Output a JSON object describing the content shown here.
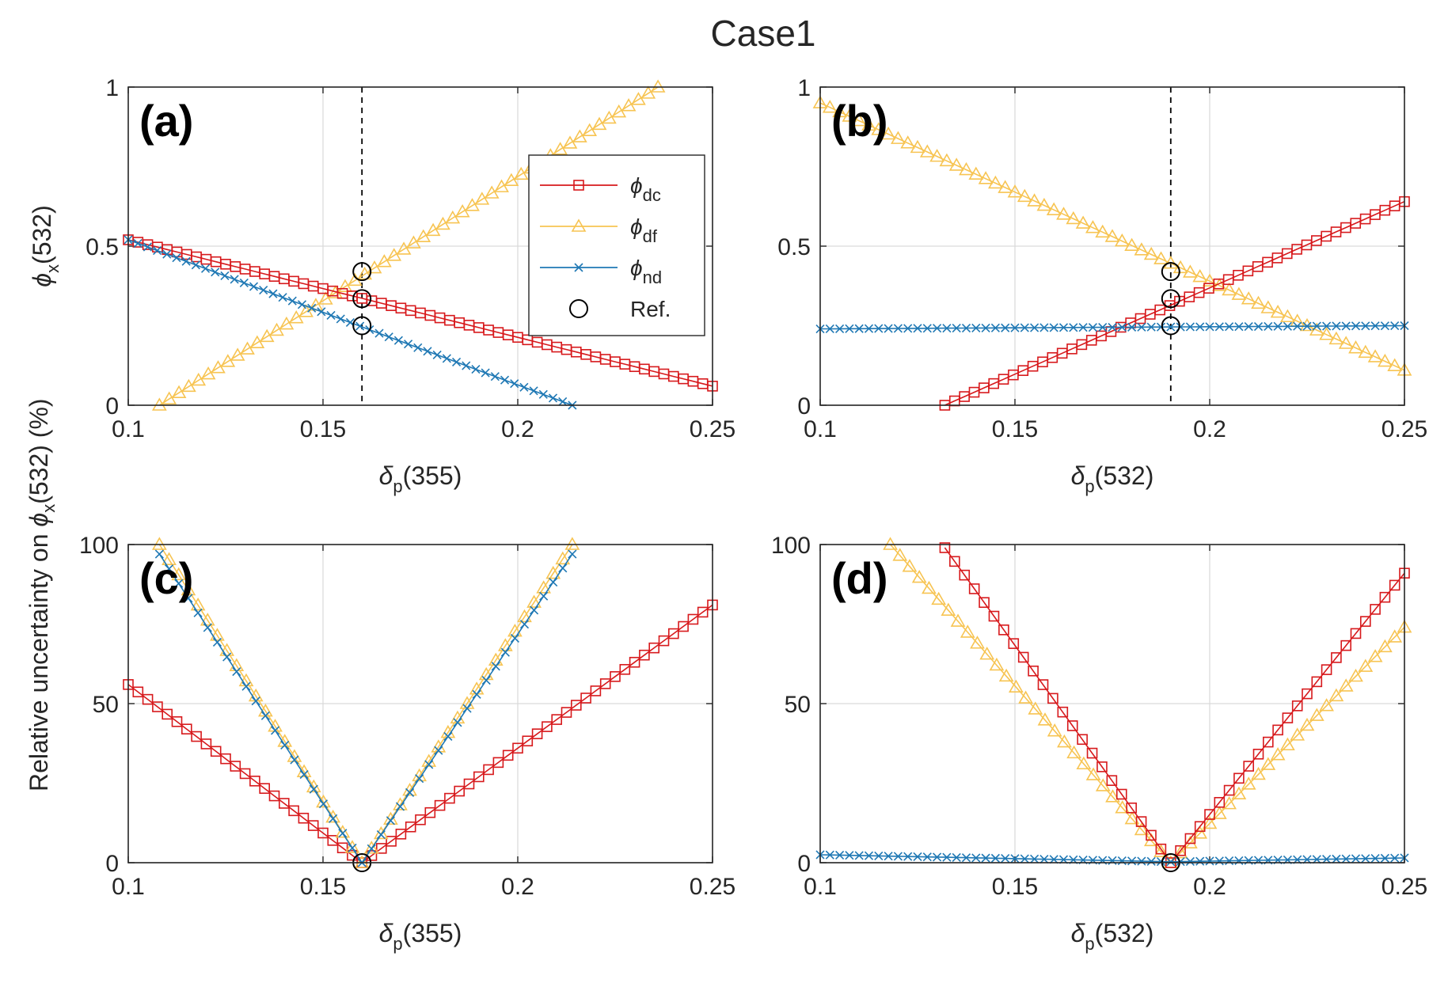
{
  "figure": {
    "title": "Case1",
    "shared_ylabel": {
      "prefix": "Relative uncertainty on ",
      "symbol": "ϕ",
      "subscript": "x",
      "suffix": "(532) (%)"
    },
    "colors": {
      "dc": "#d7191c",
      "df": "#f7c452",
      "nd": "#1f78b4",
      "ref": "#000000",
      "grid": "#d9d9d9",
      "axis": "#262626"
    }
  },
  "legend": {
    "entries": [
      {
        "key": "dc",
        "symbol": "ϕ",
        "sub": "dc",
        "marker": "square"
      },
      {
        "key": "df",
        "symbol": "ϕ",
        "sub": "df",
        "marker": "triangle"
      },
      {
        "key": "nd",
        "symbol": "ϕ",
        "sub": "nd",
        "marker": "x"
      },
      {
        "key": "ref",
        "label": "Ref.",
        "marker": "circle"
      }
    ]
  },
  "chart_data": [
    {
      "id": "a",
      "type": "line",
      "panel_label": "(a)",
      "xlabel": {
        "symbol": "δ",
        "sub": "p",
        "suffix": "(355)"
      },
      "ylabel": {
        "symbol": "ϕ",
        "sub": "x",
        "suffix": "(532)"
      },
      "xlim": [
        0.1,
        0.25
      ],
      "ylim": [
        0,
        1
      ],
      "xticks": [
        "0.1",
        "0.15",
        "0.2",
        "0.25"
      ],
      "yticks": [
        "0",
        "0.5",
        "1"
      ],
      "grid": true,
      "legend": "top-right",
      "ref_line_x": 0.16,
      "series": [
        {
          "key": "dc",
          "x_start": 0.1,
          "x_end": 0.25,
          "y_start": 0.52,
          "y_end": 0.06
        },
        {
          "key": "df",
          "x_start": 0.108,
          "x_end": 0.236,
          "y_start": 0.0,
          "y_end": 1.0
        },
        {
          "key": "nd",
          "x_start": 0.1,
          "x_end": 0.214,
          "y_start": 0.52,
          "y_end": 0.0
        }
      ],
      "ref_points": [
        {
          "x": 0.16,
          "y": 0.42
        },
        {
          "x": 0.16,
          "y": 0.335
        },
        {
          "x": 0.16,
          "y": 0.25
        }
      ]
    },
    {
      "id": "b",
      "type": "line",
      "panel_label": "(b)",
      "xlabel": {
        "symbol": "δ",
        "sub": "p",
        "suffix": "(532)"
      },
      "xlim": [
        0.1,
        0.25
      ],
      "ylim": [
        0,
        1
      ],
      "xticks": [
        "0.1",
        "0.15",
        "0.2",
        "0.25"
      ],
      "yticks": [
        "0",
        "0.5",
        "1"
      ],
      "grid": true,
      "ref_line_x": 0.19,
      "series": [
        {
          "key": "dc",
          "x_start": 0.132,
          "x_end": 0.25,
          "y_start": 0.0,
          "y_end": 0.64
        },
        {
          "key": "df",
          "x_start": 0.1,
          "x_end": 0.25,
          "y_start": 0.95,
          "y_end": 0.11
        },
        {
          "key": "nd",
          "x_start": 0.1,
          "x_end": 0.25,
          "y_start": 0.24,
          "y_end": 0.25
        }
      ],
      "ref_points": [
        {
          "x": 0.19,
          "y": 0.42
        },
        {
          "x": 0.19,
          "y": 0.335
        },
        {
          "x": 0.19,
          "y": 0.25
        }
      ]
    },
    {
      "id": "c",
      "type": "line",
      "panel_label": "(c)",
      "xlabel": {
        "symbol": "δ",
        "sub": "p",
        "suffix": "(355)"
      },
      "xlim": [
        0.1,
        0.25
      ],
      "ylim": [
        0,
        100
      ],
      "xticks": [
        "0.1",
        "0.15",
        "0.2",
        "0.25"
      ],
      "yticks": [
        "0",
        "50",
        "100"
      ],
      "grid": true,
      "series": [
        {
          "key": "dc",
          "vee": {
            "x0": 0.16,
            "left_x": 0.1,
            "left_y": 56,
            "right_x": 0.25,
            "right_y": 81
          }
        },
        {
          "key": "df",
          "vee": {
            "x0": 0.16,
            "left_x": 0.108,
            "left_y": 100,
            "right_x": 0.214,
            "right_y": 100
          }
        },
        {
          "key": "nd",
          "vee": {
            "x0": 0.16,
            "left_x": 0.108,
            "left_y": 97,
            "right_x": 0.214,
            "right_y": 97
          }
        }
      ],
      "ref_points": [
        {
          "x": 0.16,
          "y": 0
        }
      ]
    },
    {
      "id": "d",
      "type": "line",
      "panel_label": "(d)",
      "xlabel": {
        "symbol": "δ",
        "sub": "p",
        "suffix": "(532)"
      },
      "xlim": [
        0.1,
        0.25
      ],
      "ylim": [
        0,
        100
      ],
      "xticks": [
        "0.1",
        "0.15",
        "0.2",
        "0.25"
      ],
      "yticks": [
        "0",
        "50",
        "100"
      ],
      "grid": true,
      "series": [
        {
          "key": "dc",
          "vee": {
            "x0": 0.19,
            "left_x": 0.132,
            "left_y": 99,
            "right_x": 0.25,
            "right_y": 91
          }
        },
        {
          "key": "df",
          "vee": {
            "x0": 0.19,
            "left_x": 0.118,
            "left_y": 100,
            "right_x": 0.25,
            "right_y": 74
          }
        },
        {
          "key": "nd",
          "flat": {
            "x_start": 0.1,
            "x_end": 0.25,
            "y_start": 2.5,
            "y_mid": 0.3,
            "y_end": 1.5
          }
        }
      ],
      "ref_points": [
        {
          "x": 0.19,
          "y": 0
        }
      ]
    }
  ]
}
